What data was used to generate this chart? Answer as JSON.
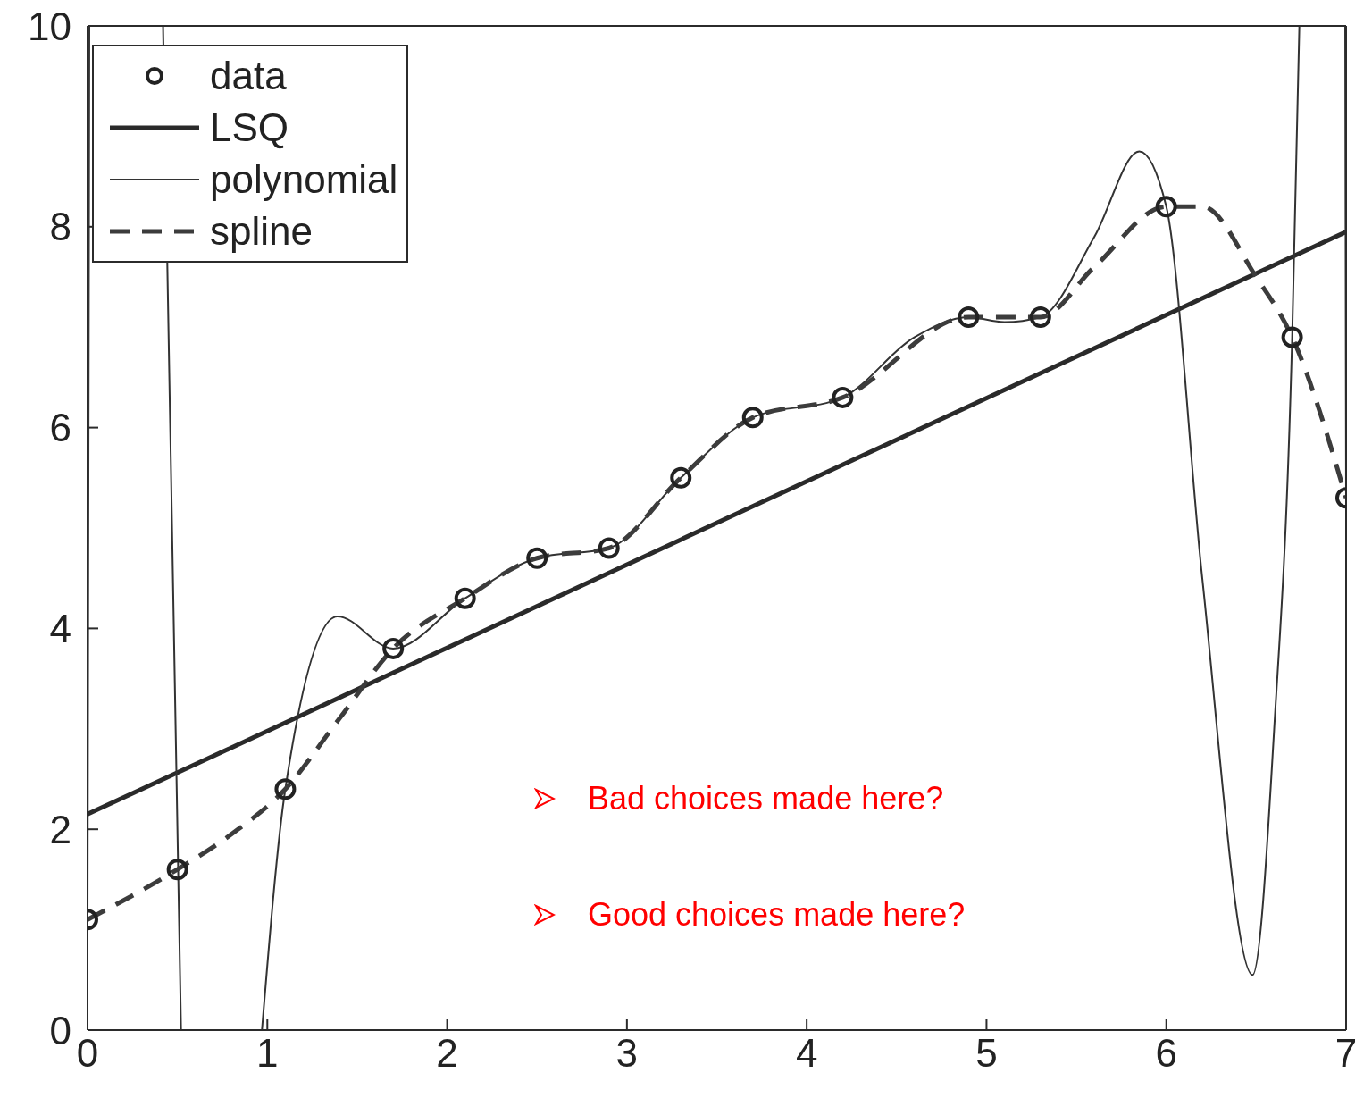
{
  "chart_data": {
    "type": "line",
    "xlim": [
      0,
      7
    ],
    "ylim": [
      0,
      10
    ],
    "xticks": [
      0,
      1,
      2,
      3,
      4,
      5,
      6,
      7
    ],
    "yticks": [
      0,
      2,
      4,
      6,
      8,
      10
    ],
    "legend": "top left",
    "grid": false,
    "series": [
      {
        "name": "data",
        "type": "scatter",
        "marker": "circle",
        "color": "#222222",
        "x": [
          0,
          0.5,
          1.1,
          1.7,
          2.1,
          2.5,
          2.9,
          3.3,
          3.7,
          4.2,
          4.9,
          5.3,
          6.0,
          6.7,
          7.0
        ],
        "values": [
          1.1,
          1.6,
          2.4,
          3.8,
          4.3,
          4.7,
          4.8,
          5.5,
          6.1,
          6.3,
          7.1,
          7.1,
          8.2,
          6.9,
          5.3
        ]
      },
      {
        "name": "LSQ",
        "marker": "none",
        "line_style": "solid",
        "color": "#2a2a2a",
        "x": [
          0,
          7
        ],
        "values": [
          2.15,
          7.95
        ]
      },
      {
        "name": "polynomial",
        "marker": "none",
        "line_style": "solid",
        "color": "#333333",
        "x": [
          0,
          0.01,
          0.015,
          0.42,
          0.52,
          0.75,
          0.97,
          1.1,
          1.39,
          1.7,
          2.1,
          2.5,
          2.9,
          3.3,
          3.7,
          4.2,
          4.6,
          4.9,
          5.1,
          5.3,
          5.6,
          5.85,
          6.0,
          6.2,
          6.48,
          6.6,
          6.7,
          6.74,
          6.99,
          6.995,
          7.0
        ],
        "values": [
          1.1,
          10,
          null,
          10,
          0,
          null,
          0,
          2.4,
          4.12,
          3.8,
          4.3,
          4.7,
          4.8,
          5.5,
          6.1,
          6.3,
          6.9,
          7.1,
          7.05,
          7.1,
          7.9,
          8.75,
          8.2,
          4.5,
          0.55,
          3,
          6.9,
          10,
          null,
          10,
          5.3
        ]
      },
      {
        "name": "spline",
        "marker": "none",
        "line_style": "dashed",
        "color": "#3c3c3c",
        "x": [
          0,
          0.5,
          0.8,
          1.1,
          1.4,
          1.7,
          2.1,
          2.5,
          2.9,
          3.3,
          3.7,
          4.2,
          4.9,
          5.3,
          5.6,
          6.0,
          6.2,
          6.5,
          6.7,
          7.0
        ],
        "values": [
          1.1,
          1.6,
          1.95,
          2.4,
          3.1,
          3.8,
          4.3,
          4.7,
          4.8,
          5.5,
          6.1,
          6.3,
          7.1,
          7.1,
          7.6,
          8.2,
          8.2,
          7.5,
          6.9,
          5.3
        ]
      }
    ],
    "annotations": [
      "Bad choices made here?",
      "Good choices made here?"
    ]
  }
}
